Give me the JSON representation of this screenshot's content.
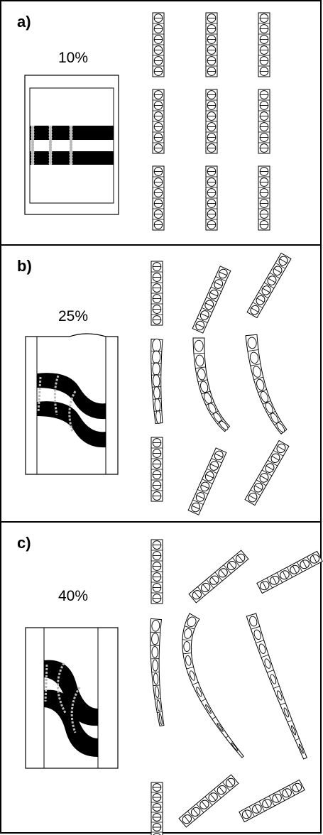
{
  "panels": [
    {
      "label": "a)",
      "percent": "10%"
    },
    {
      "label": "b)",
      "percent": "25%"
    },
    {
      "label": "c)",
      "percent": "40%"
    }
  ]
}
